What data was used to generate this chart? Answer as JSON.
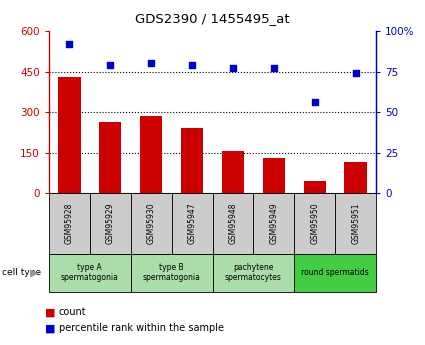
{
  "title": "GDS2390 / 1455495_at",
  "samples": [
    "GSM95928",
    "GSM95929",
    "GSM95930",
    "GSM95947",
    "GSM95948",
    "GSM95949",
    "GSM95950",
    "GSM95951"
  ],
  "counts": [
    430,
    265,
    285,
    240,
    155,
    130,
    45,
    115
  ],
  "percentiles": [
    92,
    79,
    80,
    79,
    77,
    77,
    56,
    74
  ],
  "ylim_left": [
    0,
    600
  ],
  "ylim_right": [
    0,
    100
  ],
  "yticks_left": [
    0,
    150,
    300,
    450,
    600
  ],
  "yticks_right": [
    0,
    25,
    50,
    75,
    100
  ],
  "bar_color": "#CC0000",
  "dot_color": "#0000CC",
  "left_axis_color": "#CC0000",
  "right_axis_color": "#0000CC",
  "left_tick_labels": [
    "0",
    "150",
    "300",
    "450",
    "600"
  ],
  "right_tick_labels": [
    "0",
    "25",
    "50",
    "75",
    "100%"
  ],
  "gsm_bg": "#cccccc",
  "cell_type_groups": [
    {
      "label": "type A\nspermatogonia",
      "count": 2,
      "color": "#aaddaa"
    },
    {
      "label": "type B\nspermatogonia",
      "count": 2,
      "color": "#aaddaa"
    },
    {
      "label": "pachytene\nspermatocytes",
      "count": 2,
      "color": "#aaddaa"
    },
    {
      "label": "round spermatids",
      "count": 2,
      "color": "#44cc44"
    }
  ],
  "legend_count_label": "count",
  "legend_pct_label": "percentile rank within the sample",
  "cell_type_label": "cell type"
}
